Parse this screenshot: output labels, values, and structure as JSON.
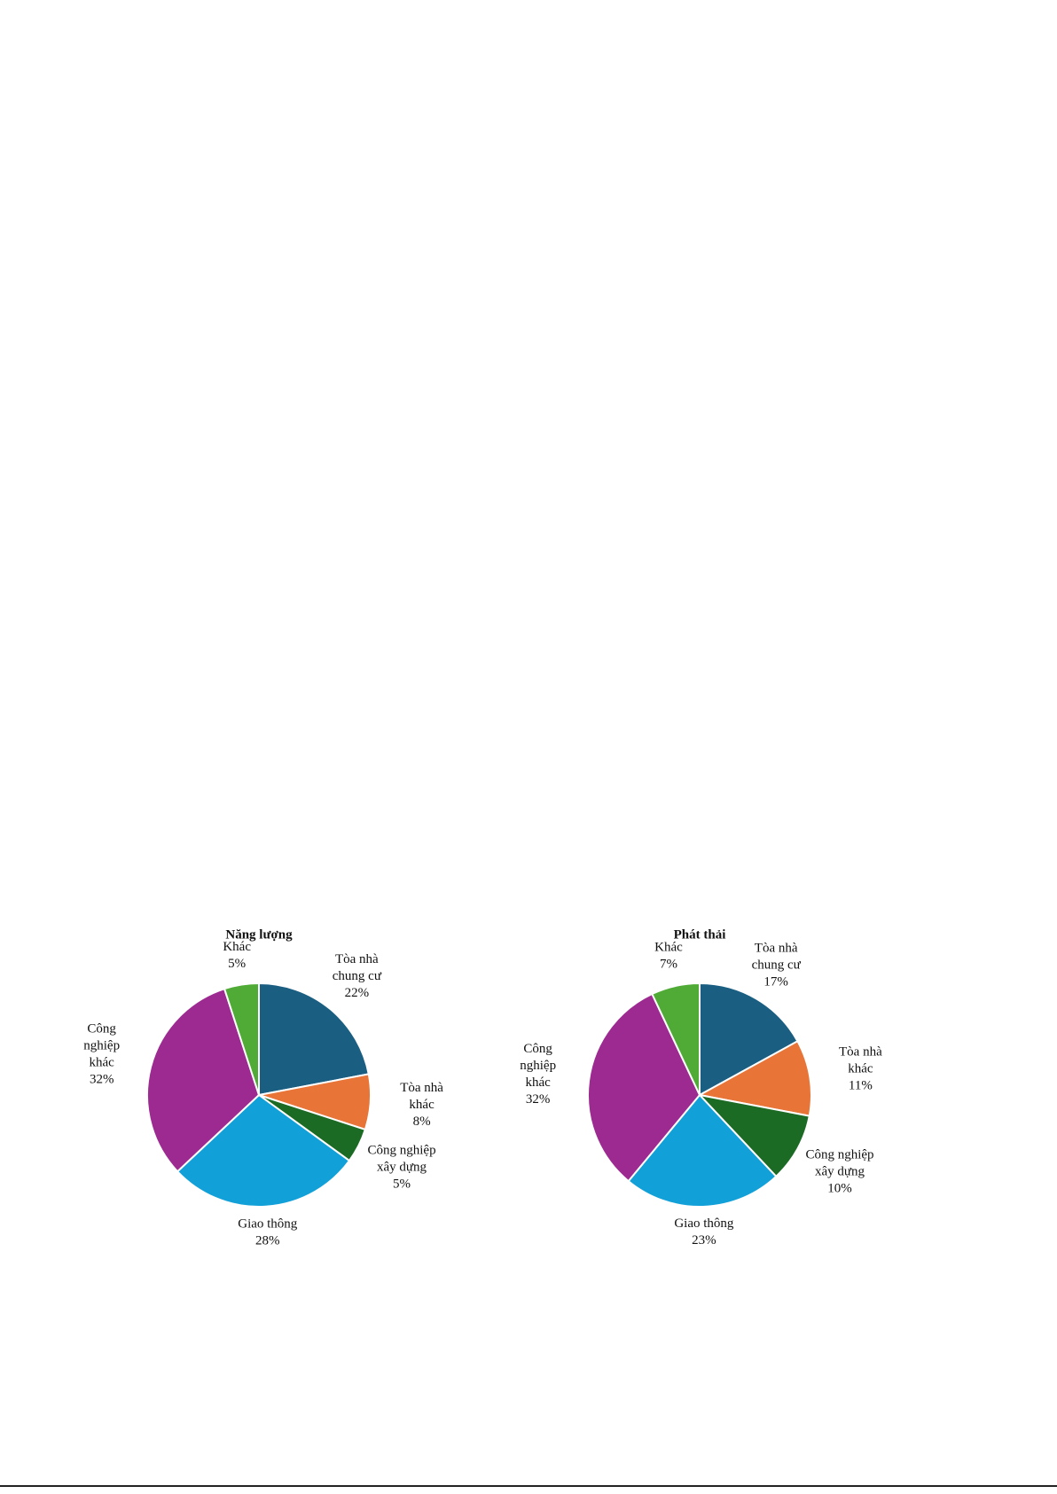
{
  "chart_data": [
    {
      "type": "pie",
      "title": "Năng lượng",
      "categories": [
        [
          "Tòa nhà",
          "chung cư"
        ],
        [
          "Tòa nhà",
          "khác"
        ],
        [
          "Công nghiệp",
          "xây dựng"
        ],
        [
          "Giao thông"
        ],
        [
          "Công",
          "nghiệp",
          "khác"
        ],
        [
          "Khác"
        ]
      ],
      "values": [
        22,
        8,
        5,
        28,
        32,
        5
      ],
      "value_labels": [
        "22%",
        "8%",
        "5%",
        "28%",
        "32%",
        "5%"
      ],
      "colors": [
        "#1a5e82",
        "#e87537",
        "#1c6b25",
        "#12a0d8",
        "#9c2a90",
        "#4fab35"
      ]
    },
    {
      "type": "pie",
      "title": "Phát thải",
      "categories": [
        [
          "Tòa nhà",
          "chung cư"
        ],
        [
          "Tòa nhà",
          "khác"
        ],
        [
          "Công nghiệp",
          "xây dựng"
        ],
        [
          "Giao thông"
        ],
        [
          "Công",
          "nghiệp",
          "khác"
        ],
        [
          "Khác"
        ]
      ],
      "values": [
        17,
        11,
        10,
        23,
        32,
        7
      ],
      "value_labels": [
        "17%",
        "11%",
        "10%",
        "23%",
        "32%",
        "7%"
      ],
      "colors": [
        "#1a5e82",
        "#e87537",
        "#1c6b25",
        "#12a0d8",
        "#9c2a90",
        "#4fab35"
      ]
    }
  ]
}
